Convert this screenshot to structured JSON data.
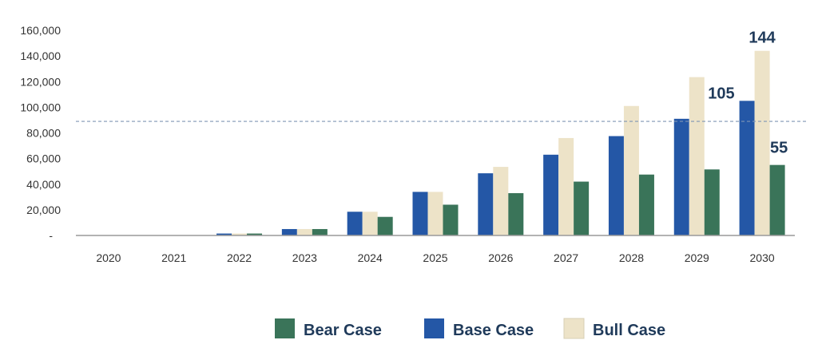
{
  "chart_data": {
    "type": "bar",
    "categories": [
      "2020",
      "2021",
      "2022",
      "2023",
      "2024",
      "2025",
      "2026",
      "2027",
      "2028",
      "2029",
      "2030"
    ],
    "series": [
      {
        "name": "Base Case",
        "color": "#2457a6",
        "values": [
          0,
          0,
          1500,
          5000,
          18500,
          34000,
          48500,
          63000,
          77500,
          91000,
          105000
        ]
      },
      {
        "name": "Bull Case",
        "color": "#ede3c8",
        "values": [
          0,
          0,
          1500,
          5000,
          18500,
          34000,
          53500,
          76000,
          101000,
          123500,
          144000
        ]
      },
      {
        "name": "Bear Case",
        "color": "#3a7459",
        "values": [
          0,
          0,
          1500,
          5000,
          14500,
          24000,
          33000,
          42000,
          47500,
          51500,
          55000
        ]
      }
    ],
    "legend_order": [
      "Bear Case",
      "Base Case",
      "Bull Case"
    ],
    "ylim": [
      0,
      160000
    ],
    "yticks": [
      "-",
      "20,000",
      "40,000",
      "60,000",
      "80,000",
      "100,000",
      "120,000",
      "140,000",
      "160,000"
    ],
    "reference_line": {
      "value": 89000,
      "style": "dashed",
      "color": "#7f96b5"
    },
    "annotations": [
      {
        "text": "105",
        "category": "2030",
        "series": "Base Case"
      },
      {
        "text": "144",
        "category": "2030",
        "series": "Bull Case"
      },
      {
        "text": "55",
        "category": "2030",
        "series": "Bear Case"
      }
    ],
    "grid": false,
    "legend_position": "bottom"
  }
}
